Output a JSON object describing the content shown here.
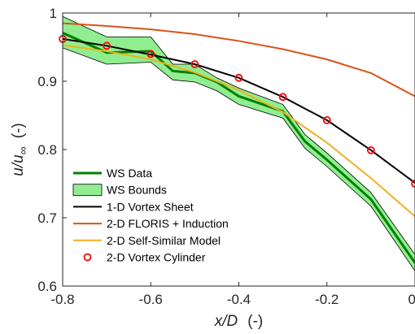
{
  "chart_data": {
    "type": "line",
    "title": "",
    "xlabel": "x/D  (-)",
    "xlabel_var": "x/D",
    "xlabel_unit": "(-)",
    "ylabel": "u/u∞  (-)",
    "ylabel_var": "u/u",
    "ylabel_sub": "∞",
    "ylabel_unit": "(-)",
    "xlim": [
      -0.8,
      0
    ],
    "ylim": [
      0.6,
      1.0
    ],
    "xticks": [
      -0.8,
      -0.6,
      -0.4,
      -0.2,
      0
    ],
    "xtick_labels": [
      "-0.8",
      "-0.6",
      "-0.4",
      "-0.2",
      "0"
    ],
    "yticks": [
      0.6,
      0.7,
      0.8,
      0.9,
      1.0
    ],
    "ytick_labels": [
      "0.6",
      "0.7",
      "0.8",
      "0.9",
      "1"
    ],
    "grid": false,
    "legend_position": "bottom-left",
    "series": [
      {
        "name": "WS Data",
        "kind": "line",
        "color": "#008000",
        "x": [
          -0.8,
          -0.7,
          -0.6,
          -0.55,
          -0.5,
          -0.45,
          -0.4,
          -0.3,
          -0.25,
          -0.2,
          -0.1,
          0
        ],
        "y": [
          0.971,
          0.942,
          0.944,
          0.915,
          0.912,
          0.899,
          0.878,
          0.856,
          0.812,
          0.785,
          0.727,
          0.634
        ]
      },
      {
        "name": "WS Bounds",
        "kind": "band",
        "color": "#90ee90",
        "edge_color": "#000000",
        "x": [
          -0.8,
          -0.7,
          -0.6,
          -0.55,
          -0.5,
          -0.45,
          -0.4,
          -0.3,
          -0.25,
          -0.2,
          -0.1,
          0
        ],
        "upper": [
          0.995,
          0.965,
          0.965,
          0.925,
          0.925,
          0.905,
          0.89,
          0.866,
          0.822,
          0.795,
          0.737,
          0.646
        ],
        "lower": [
          0.949,
          0.925,
          0.928,
          0.902,
          0.899,
          0.886,
          0.866,
          0.846,
          0.802,
          0.775,
          0.717,
          0.622
        ]
      },
      {
        "name": "1-D Vortex Sheet",
        "kind": "line",
        "color": "#000000",
        "x": [
          -0.8,
          -0.7,
          -0.6,
          -0.5,
          -0.4,
          -0.3,
          -0.2,
          -0.1,
          0
        ],
        "y": [
          0.962,
          0.952,
          0.939,
          0.925,
          0.905,
          0.877,
          0.843,
          0.799,
          0.751
        ]
      },
      {
        "name": "2-D FLORIS + Induction",
        "kind": "line",
        "color": "#d95319",
        "x": [
          -0.8,
          -0.7,
          -0.6,
          -0.5,
          -0.4,
          -0.3,
          -0.2,
          -0.1,
          0
        ],
        "y": [
          0.985,
          0.981,
          0.976,
          0.969,
          0.959,
          0.947,
          0.932,
          0.912,
          0.878
        ]
      },
      {
        "name": "2-D Self-Similar Model",
        "kind": "line",
        "color": "#edb120",
        "x": [
          -0.8,
          -0.7,
          -0.6,
          -0.5,
          -0.4,
          -0.3,
          -0.2,
          -0.1,
          0
        ],
        "y": [
          0.953,
          0.944,
          0.932,
          0.913,
          0.887,
          0.855,
          0.81,
          0.758,
          0.702
        ]
      },
      {
        "name": "2-D Vortex Cylinder",
        "kind": "markers",
        "color": "#ff0000",
        "x": [
          -0.8,
          -0.7,
          -0.6,
          -0.5,
          -0.4,
          -0.3,
          -0.2,
          -0.1,
          0
        ],
        "y": [
          0.962,
          0.952,
          0.94,
          0.925,
          0.905,
          0.877,
          0.843,
          0.799,
          0.75
        ]
      }
    ]
  }
}
